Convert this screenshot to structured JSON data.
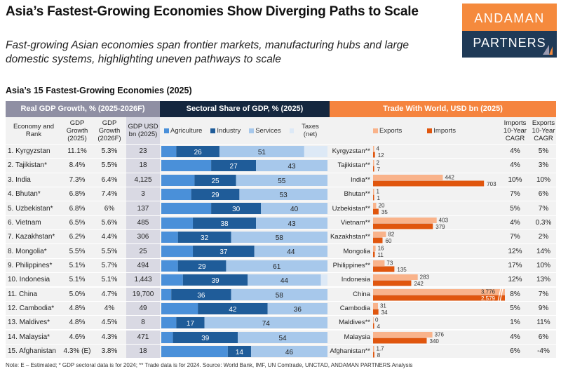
{
  "header": {
    "title": "Asia’s Fastest-Growing Economies Show Diverging Paths to Scale",
    "subtitle": "Fast-growing Asian economies span frontier markets, manufacturing hubs and large domestic systems, highlighting uneven pathways to scale",
    "logo_top": "ANDAMAN",
    "logo_bottom": "PARTNERS",
    "section_title": "Asia’s 15 Fastest-Growing Economies (2025)"
  },
  "groups": {
    "gdp": "Real GDP Growth, % (2025-2026F)",
    "sector": "Sectoral Share of GDP, % (2025)",
    "trade": "Trade With World, USD bn (2025)"
  },
  "columns": {
    "economy": "Economy and Rank",
    "gdp2025": "GDP Growth (2025)",
    "gdp2026": "GDP Growth (2026F)",
    "usd": "GDP USD bn (2025)",
    "imports_cagr": "Imports 10-Year CAGR",
    "exports_cagr": "Exports 10-Year CAGR"
  },
  "colors": {
    "agriculture": "#4a90d9",
    "industry": "#1f5c99",
    "services": "#a7c8eb",
    "taxes": "#dde9f6",
    "exports": "#f9b38b",
    "imports": "#e0560e",
    "grey_header": "#8f8fa3",
    "navy_header": "#15273f",
    "orange_header": "#f5843f"
  },
  "note": "Note: E – Estimated; * GDP sectoral data is for 2024; ** Trade data is for 2024. Source: World Bank, IMF, UN Comtrade, UNCTAD, ANDAMAN PARTNERS Analysis",
  "chart_data": [
    {
      "type": "bar",
      "title": "Sectoral Share of GDP, % (2025)",
      "stacked": true,
      "orientation": "horizontal",
      "legend": [
        "Agriculture",
        "Industry",
        "Services",
        "Taxes (net)"
      ],
      "legend_position": "top",
      "categories": [
        "Kyrgyzstan",
        "Tajikistan",
        "India",
        "Bhutan",
        "Uzbekistan",
        "Vietnam",
        "Kazakhstan",
        "Mongolia",
        "Philippines",
        "Indonesia",
        "China",
        "Cambodia",
        "Maldives",
        "Malaysia",
        "Afghanistan"
      ],
      "series": [
        {
          "name": "Agriculture",
          "values": [
            9,
            30,
            20,
            18,
            30,
            19,
            10,
            19,
            10,
            13,
            6,
            22,
            9,
            7,
            40
          ],
          "labeled": false
        },
        {
          "name": "Industry",
          "values": [
            26,
            27,
            25,
            29,
            30,
            38,
            32,
            37,
            29,
            39,
            36,
            42,
            17,
            39,
            14
          ],
          "labeled": true
        },
        {
          "name": "Services",
          "values": [
            51,
            43,
            55,
            53,
            40,
            43,
            58,
            44,
            61,
            44,
            58,
            36,
            74,
            54,
            46
          ],
          "labeled": true
        },
        {
          "name": "Taxes (net)",
          "values": [
            14,
            0,
            0,
            0,
            0,
            0,
            0,
            0,
            0,
            4,
            0,
            0,
            0,
            0,
            0
          ],
          "labeled": false
        }
      ],
      "xlim": [
        0,
        100
      ]
    },
    {
      "type": "bar",
      "title": "Trade With World, USD bn (2025)",
      "orientation": "horizontal",
      "legend": [
        "Exports",
        "Imports"
      ],
      "legend_position": "top",
      "categories": [
        "Kyrgyzstan**",
        "Tajikistan**",
        "India**",
        "Bhutan**",
        "Uzbekistan**",
        "Vietnam**",
        "Kazakhstan**",
        "Mongolia",
        "Philippines**",
        "Indonesia",
        "China",
        "Cambodia",
        "Maldives**",
        "Malaysia",
        "Afghanistan**"
      ],
      "series": [
        {
          "name": "Exports",
          "values": [
            4,
            2,
            442,
            1,
            20,
            403,
            82,
            16,
            73,
            283,
            3776,
            31,
            0,
            376,
            1.7
          ],
          "labels": [
            "4",
            "2",
            "442",
            "1",
            "20",
            "403",
            "82",
            "16",
            "73",
            "283",
            "3,776",
            "31",
            "0",
            "376",
            "1.7"
          ]
        },
        {
          "name": "Imports",
          "values": [
            12,
            7,
            703,
            1,
            35,
            379,
            60,
            11,
            135,
            242,
            2579,
            34,
            4,
            340,
            8
          ],
          "labels": [
            "12",
            "7",
            "703",
            "1",
            "35",
            "379",
            "60",
            "11",
            "135",
            "242",
            "2,579",
            "34",
            "4",
            "340",
            "8"
          ]
        }
      ],
      "axis_break_for": "China",
      "xlim": [
        0,
        800
      ]
    }
  ],
  "rows": [
    {
      "name": "1. Kyrgyzstan",
      "g25": "11.1%",
      "g26": "5.3%",
      "usd": "23",
      "tname": "Kyrgyzstan**",
      "imp": "4%",
      "exp": "5%"
    },
    {
      "name": "2. Tajikistan*",
      "g25": "8.4%",
      "g26": "5.5%",
      "usd": "18",
      "tname": "Tajikistan**",
      "imp": "4%",
      "exp": "3%"
    },
    {
      "name": "3. India",
      "g25": "7.3%",
      "g26": "6.4%",
      "usd": "4,125",
      "tname": "India**",
      "imp": "10%",
      "exp": "10%"
    },
    {
      "name": "4. Bhutan*",
      "g25": "6.8%",
      "g26": "7.4%",
      "usd": "3",
      "tname": "Bhutan**",
      "imp": "7%",
      "exp": "6%"
    },
    {
      "name": "5. Uzbekistan*",
      "g25": "6.8%",
      "g26": "6%",
      "usd": "137",
      "tname": "Uzbekistan**",
      "imp": "5%",
      "exp": "7%"
    },
    {
      "name": "6. Vietnam",
      "g25": "6.5%",
      "g26": "5.6%",
      "usd": "485",
      "tname": "Vietnam**",
      "imp": "4%",
      "exp": "0.3%"
    },
    {
      "name": "7. Kazakhstan*",
      "g25": "6.2%",
      "g26": "4.4%",
      "usd": "306",
      "tname": "Kazakhstan**",
      "imp": "7%",
      "exp": "2%"
    },
    {
      "name": "8. Mongolia*",
      "g25": "5.5%",
      "g26": "5.5%",
      "usd": "25",
      "tname": "Mongolia",
      "imp": "12%",
      "exp": "14%"
    },
    {
      "name": "9. Philippines*",
      "g25": "5.1%",
      "g26": "5.7%",
      "usd": "494",
      "tname": "Philippines**",
      "imp": "17%",
      "exp": "10%"
    },
    {
      "name": "10. Indonesia",
      "g25": "5.1%",
      "g26": "5.1%",
      "usd": "1,443",
      "tname": "Indonesia",
      "imp": "12%",
      "exp": "13%"
    },
    {
      "name": "11. China",
      "g25": "5.0%",
      "g26": "4.7%",
      "usd": "19,700",
      "tname": "China",
      "imp": "8%",
      "exp": "7%"
    },
    {
      "name": "12. Cambodia*",
      "g25": "4.8%",
      "g26": "4%",
      "usd": "49",
      "tname": "Cambodia",
      "imp": "5%",
      "exp": "9%"
    },
    {
      "name": "13. Maldives*",
      "g25": "4.8%",
      "g26": "4.5%",
      "usd": "8",
      "tname": "Maldives**",
      "imp": "1%",
      "exp": "11%"
    },
    {
      "name": "14. Malaysia*",
      "g25": "4.6%",
      "g26": "4.3%",
      "usd": "471",
      "tname": "Malaysia",
      "imp": "4%",
      "exp": "6%"
    },
    {
      "name": "15. Afghanistan",
      "g25": "4.3% (E)",
      "g26": "3.8%",
      "usd": "18",
      "tname": "Afghanistan**",
      "imp": "6%",
      "exp": "-4%"
    }
  ]
}
